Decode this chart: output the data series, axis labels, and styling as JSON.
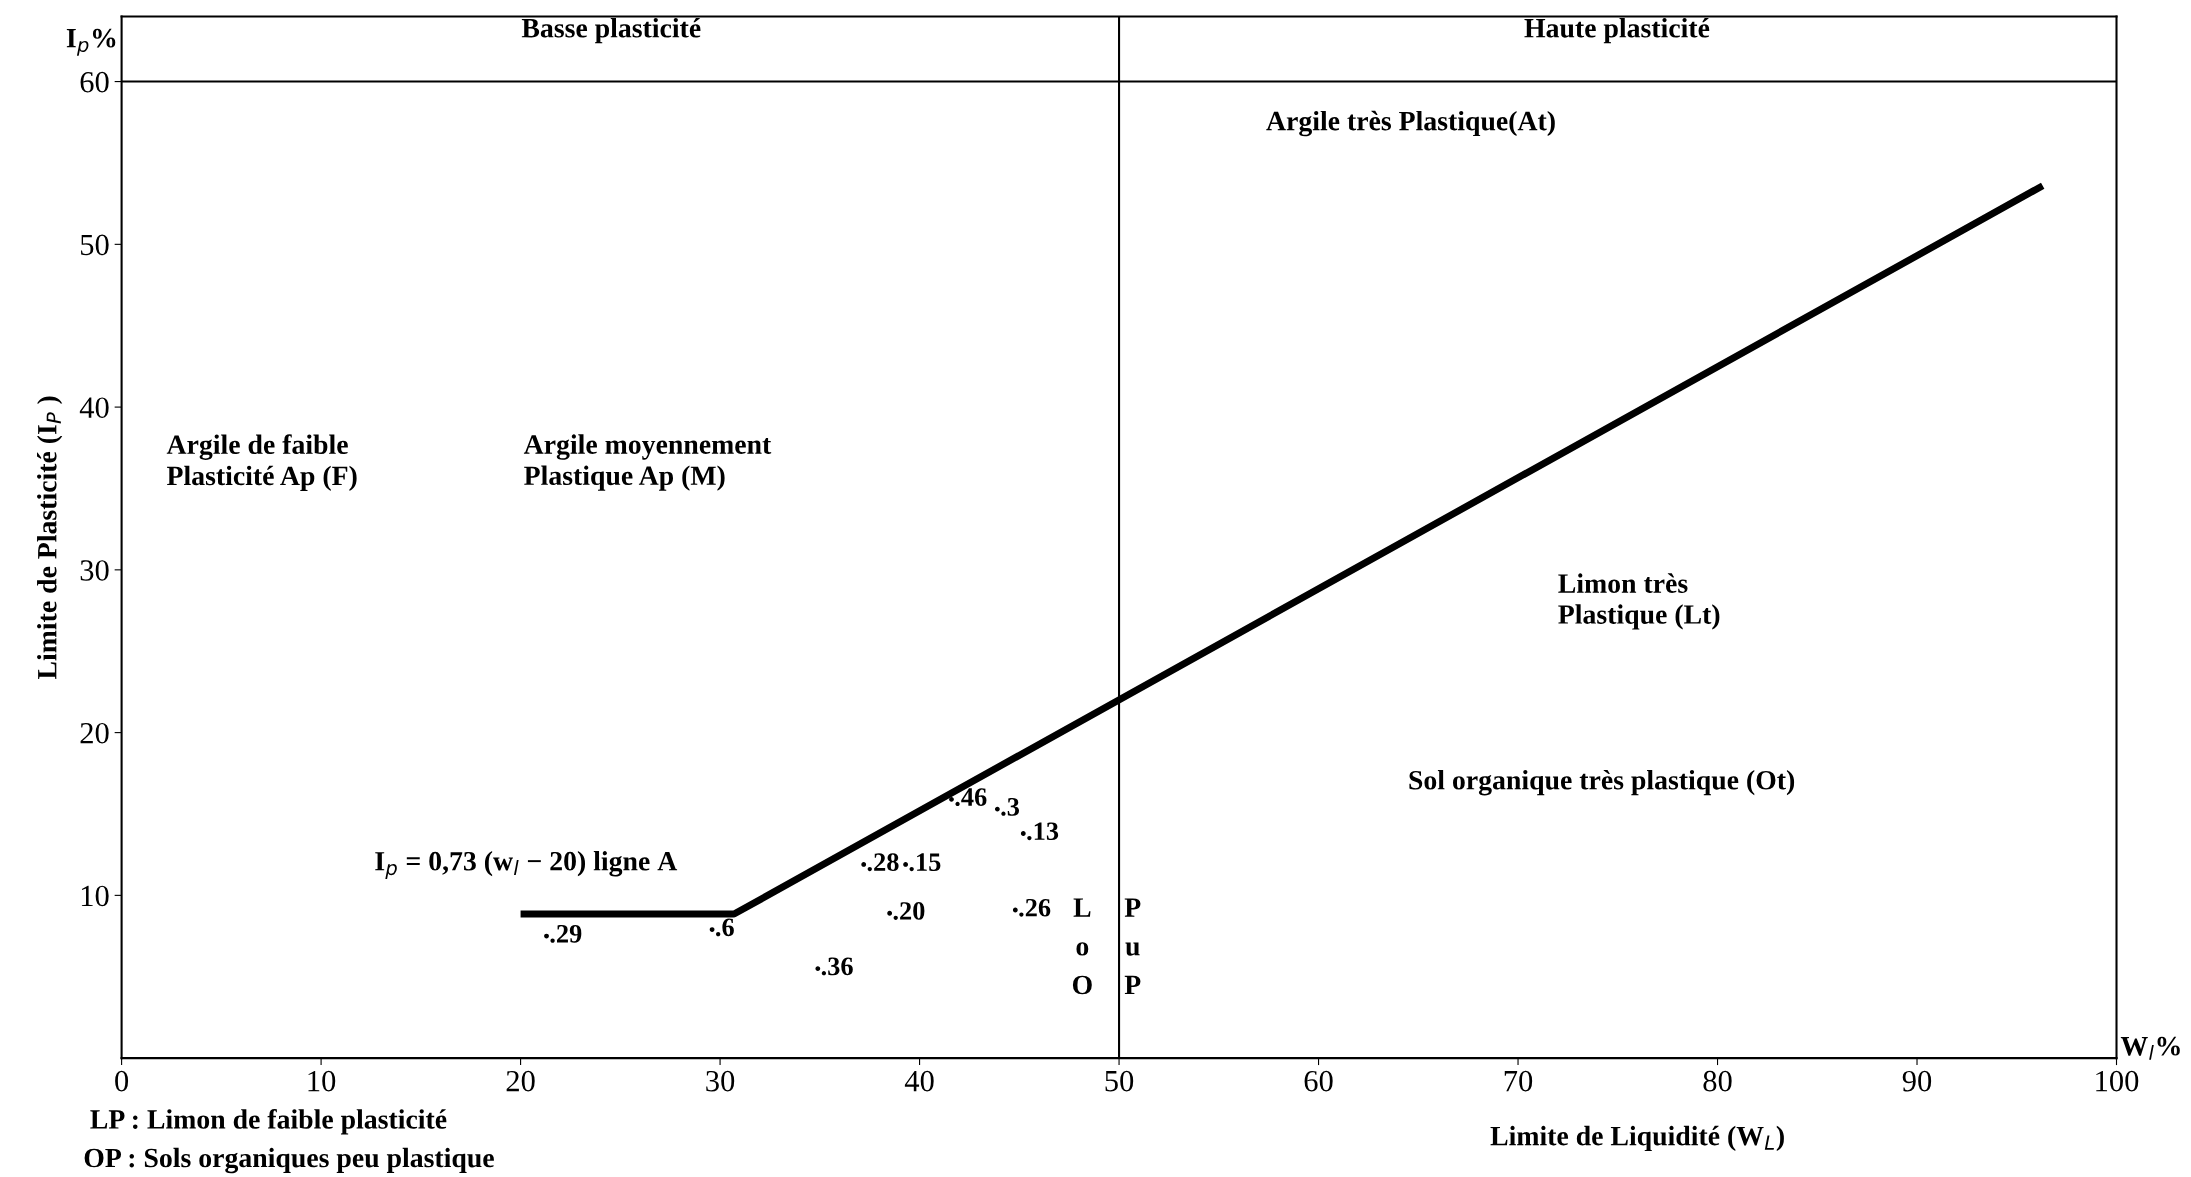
{
  "chart_data": {
    "type": "scatter",
    "xlabel": "Limite de Liquidité (W$_{L}$)",
    "ylabel": "Limite de Plasticité (I$_{P}$ )",
    "xlim": [
      0,
      100
    ],
    "xticks": [
      0,
      10,
      20,
      30,
      40,
      50,
      60,
      70,
      80,
      90,
      100
    ],
    "ylim": [
      0,
      64
    ],
    "yticks": [
      10,
      20,
      30,
      40,
      50,
      60
    ],
    "grid": false,
    "marker": "circle",
    "series": [
      {
        "color": "#000000",
        "x": [
          41.6,
          43.9,
          45.2,
          37.2,
          39.3,
          38.5,
          44.8,
          34.9,
          21.3,
          29.6
        ],
        "values": [
          15.9,
          15.3,
          13.8,
          11.9,
          11.9,
          8.9,
          9.1,
          5.5,
          7.5,
          7.9
        ]
      },
      {
        "type": "line",
        "color": "#000000",
        "line_style": "solid",
        "marker": "none",
        "x": [
          20,
          30.7,
          96.3
        ],
        "values": [
          8.85,
          8.85,
          53.6
        ]
      }
    ],
    "ref_lines": [
      {
        "axis": "y",
        "value": 60,
        "color": "#000000",
        "line_style": "solid"
      },
      {
        "axis": "x",
        "value": 50,
        "color": "#000000",
        "line_style": "solid"
      }
    ],
    "annotations": [
      "Basse plasticité",
      "Haute plasticité",
      "Argile très Plastique(At)",
      "Argile de faible\nPlasticité Ap (F)",
      "Argile moyennement\nPlastique Ap (M)",
      "Limon très\nPlastique (Lt)",
      "Sol organique très plastique (Ot)",
      "I$_{p}$ = 0,73 (w$_{l}$ − 20) ligne A",
      "L\no\nO",
      "P\nu\nP",
      "I$_{p}$%",
      "W$_{l}$%",
      "LP : Limon de faible plasticité",
      "OP : Sols organiques peu plastique",
      {
        "text": ".46",
        "x": 41.6,
        "y": 15.9
      },
      {
        "text": ".3",
        "x": 43.9,
        "y": 15.3
      },
      {
        "text": ".13",
        "x": 45.2,
        "y": 13.8
      },
      {
        "text": ".28",
        "x": 37.2,
        "y": 11.9
      },
      {
        "text": ".15",
        "x": 39.3,
        "y": 11.9
      },
      {
        "text": ".20",
        "x": 38.5,
        "y": 8.9
      },
      {
        "text": ".26",
        "x": 44.8,
        "y": 9.1
      },
      {
        "text": ".36",
        "x": 34.9,
        "y": 5.5
      },
      {
        "text": ".29",
        "x": 21.3,
        "y": 7.5
      },
      {
        "text": ".6",
        "x": 29.6,
        "y": 7.9
      }
    ]
  }
}
